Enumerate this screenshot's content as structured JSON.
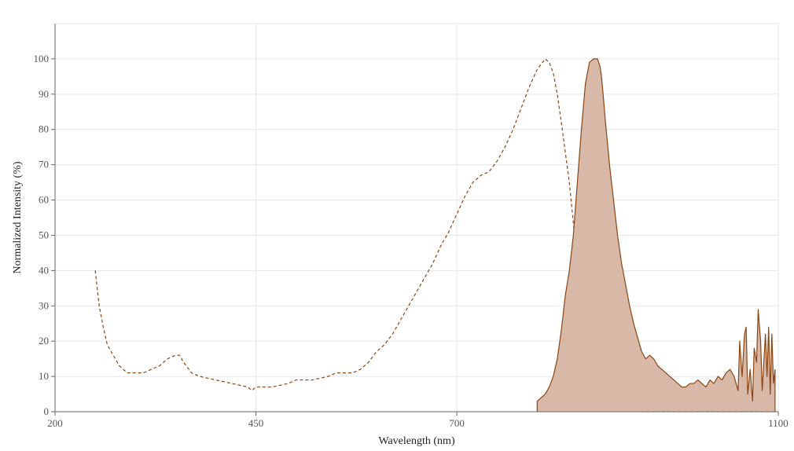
{
  "chart_data": {
    "type": "area",
    "xlabel": "Wavelength (nm)",
    "ylabel": "Normalized Intensity (%)",
    "xlim": [
      200,
      1100
    ],
    "ylim": [
      0,
      110
    ],
    "x_ticks": [
      200,
      450,
      700,
      1100
    ],
    "y_ticks": [
      0,
      10,
      20,
      30,
      40,
      50,
      60,
      70,
      80,
      90,
      100
    ],
    "grid": true,
    "colors": {
      "line": "#8B4513",
      "fill": "#d8b8a6",
      "grid": "#e6e6e6",
      "axis": "#666666"
    },
    "series": [
      {
        "style": "dashed",
        "x": [
          250,
          255,
          260,
          265,
          270,
          280,
          290,
          300,
          310,
          320,
          330,
          340,
          350,
          355,
          360,
          370,
          380,
          400,
          420,
          440,
          445,
          450,
          470,
          490,
          500,
          520,
          540,
          550,
          560,
          570,
          580,
          590,
          600,
          610,
          620,
          630,
          640,
          650,
          660,
          670,
          680,
          690,
          700,
          710,
          720,
          730,
          740,
          750,
          760,
          770,
          780,
          790,
          800,
          810,
          815,
          820,
          825,
          830,
          840,
          850,
          860,
          870,
          880,
          890,
          900,
          910,
          920,
          930,
          950,
          1000,
          1050,
          1095
        ],
        "y": [
          40,
          30,
          24,
          19,
          17,
          13,
          11,
          11,
          11,
          12,
          13,
          15,
          16,
          16,
          14,
          11,
          10,
          9,
          8,
          7,
          6,
          7,
          7,
          8,
          9,
          9,
          10,
          11,
          11,
          11,
          12,
          14,
          17,
          19,
          22,
          26,
          30,
          34,
          38,
          42,
          47,
          51,
          56,
          61,
          65,
          67,
          68,
          71,
          75,
          80,
          86,
          92,
          97,
          100,
          99,
          96,
          90,
          82,
          65,
          42,
          25,
          15,
          9,
          5,
          3,
          1.5,
          0.5,
          0,
          0,
          0,
          0,
          0
        ]
      },
      {
        "style": "filled",
        "x": [
          800,
          805,
          810,
          815,
          820,
          825,
          830,
          835,
          840,
          845,
          850,
          855,
          860,
          865,
          870,
          875,
          878,
          880,
          882,
          885,
          890,
          895,
          900,
          905,
          910,
          915,
          920,
          925,
          930,
          935,
          940,
          945,
          950,
          955,
          960,
          965,
          970,
          975,
          980,
          985,
          990,
          995,
          1000,
          1005,
          1010,
          1015,
          1020,
          1025,
          1030,
          1035,
          1040,
          1045,
          1050,
          1052,
          1055,
          1058,
          1060,
          1062,
          1065,
          1068,
          1070,
          1073,
          1075,
          1078,
          1080,
          1082,
          1084,
          1086,
          1088,
          1090,
          1092,
          1094,
          1096
        ],
        "y": [
          3,
          4,
          5,
          7,
          10,
          15,
          23,
          33,
          40,
          50,
          65,
          80,
          93,
          99,
          100,
          100,
          98,
          95,
          90,
          82,
          70,
          60,
          50,
          42,
          36,
          30,
          25,
          21,
          17,
          15,
          16,
          15,
          13,
          12,
          11,
          10,
          9,
          8,
          7,
          7,
          8,
          8,
          9,
          8,
          7,
          9,
          8,
          10,
          9,
          11,
          12,
          10,
          6,
          20,
          10,
          22,
          24,
          5,
          12,
          3,
          18,
          14,
          29,
          20,
          6,
          14,
          22,
          10,
          24,
          5,
          22,
          8,
          12
        ]
      }
    ]
  }
}
